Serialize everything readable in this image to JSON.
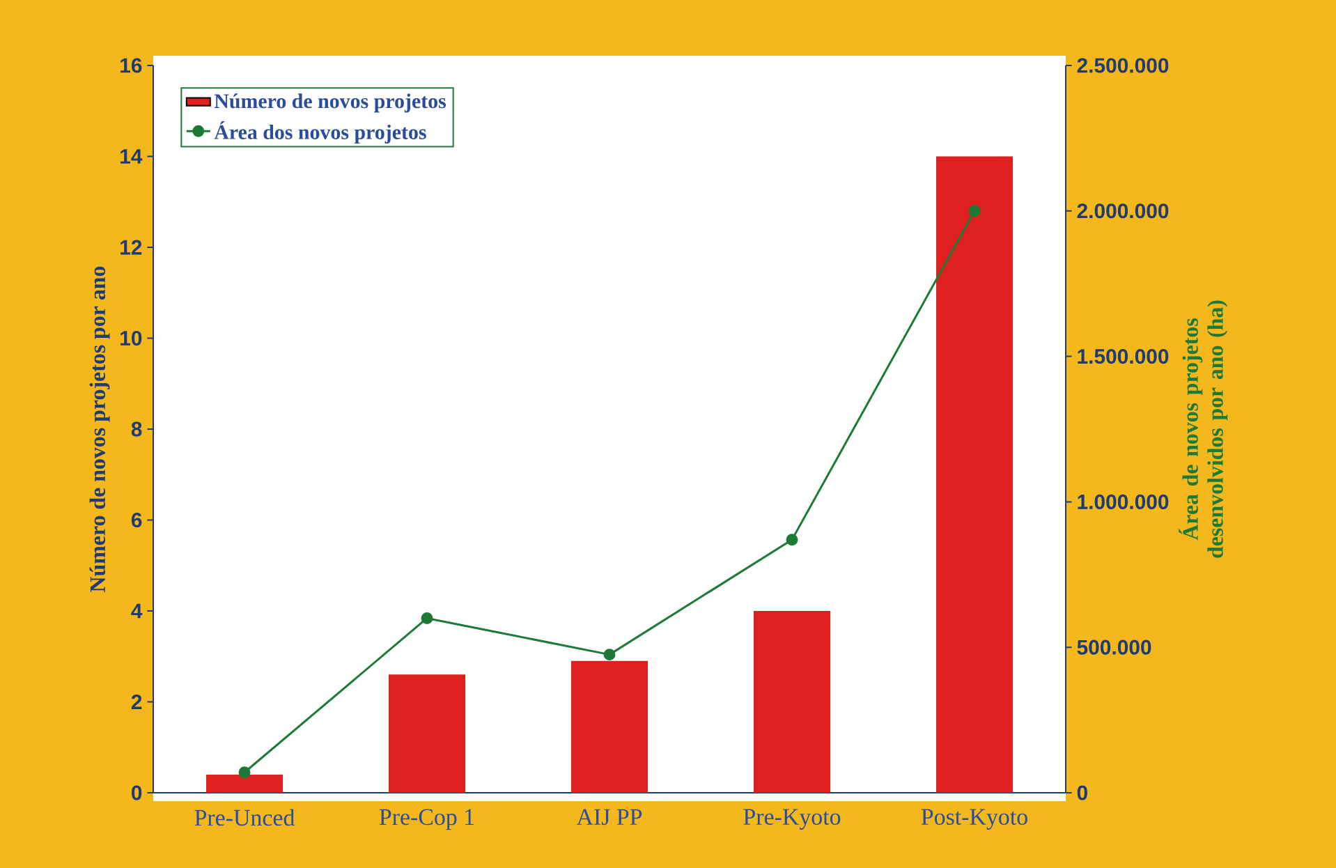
{
  "chart_data": {
    "type": "bar",
    "ylabel": "Número de novos projetos por ano",
    "y2label": "Área de novos projetos desenvolvidos por ano (ha)",
    "categories": [
      "Pre-Unced",
      "Pre-Cop 1",
      "AIJ PP",
      "Pre-Kyoto",
      "Post-Kyoto"
    ],
    "series": [
      {
        "name": "Número de novos projetos",
        "color": "#e0201f",
        "values": [
          0.4,
          2.6,
          2.9,
          4,
          14
        ]
      },
      {
        "name": "Área dos novos projetos",
        "type": "line",
        "axis": "y2",
        "color": "#1d7a36",
        "marker": "circle",
        "line_style": "solid",
        "values": [
          70000,
          600000,
          475000,
          870000,
          2000000
        ]
      }
    ],
    "ylim": [
      0,
      16
    ],
    "yticks": [
      0,
      2,
      4,
      6,
      8,
      10,
      12,
      14,
      16
    ],
    "y2lim": [
      0,
      2500000
    ],
    "y2ticks": [
      {
        "value": 0,
        "label": "0"
      },
      {
        "value": 500000,
        "label": "500.000"
      },
      {
        "value": 1000000,
        "label": "1.000.000"
      },
      {
        "value": 1500000,
        "label": "1.500.000"
      },
      {
        "value": 2000000,
        "label": "2.000.000"
      },
      {
        "value": 2500000,
        "label": "2.500.000"
      }
    ],
    "legend": "top left"
  }
}
